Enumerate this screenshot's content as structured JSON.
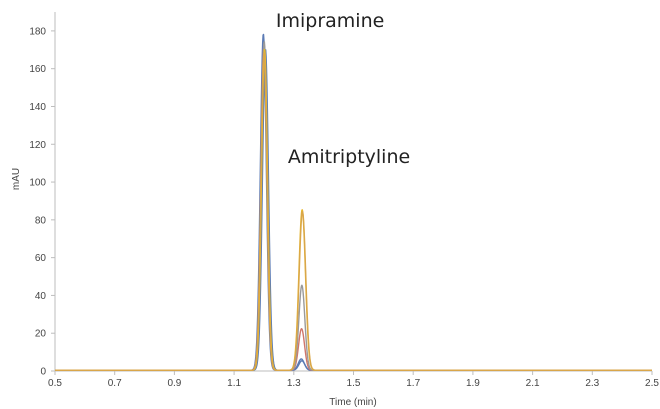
{
  "chart_data": {
    "type": "line",
    "xlabel": "Time (min)",
    "ylabel": "mAU",
    "xlim": [
      0.5,
      2.5
    ],
    "ylim": [
      0,
      190
    ],
    "x_ticks": [
      "0.5",
      "0.7",
      "0.9",
      "1.1",
      "1.3",
      "1.5",
      "1.7",
      "1.9",
      "2.1",
      "2.3",
      "2.5"
    ],
    "y_ticks": [
      "0",
      "20",
      "40",
      "60",
      "80",
      "100",
      "120",
      "140",
      "160",
      "180"
    ],
    "grid": false,
    "annotations": [
      {
        "text": "Imipramine",
        "x": 1.24,
        "y": 182
      },
      {
        "text": "Amitriptyline",
        "x": 1.28,
        "y": 110
      }
    ],
    "series": [
      {
        "color": "#5b7bb5",
        "peak1": {
          "rt": 1.198,
          "height": 178,
          "width": 0.01
        },
        "peak2": {
          "rt": 1.325,
          "height": 6,
          "width": 0.01
        }
      },
      {
        "color": "#5b7bb5",
        "peak1": {
          "rt": 1.205,
          "height": 170,
          "width": 0.01
        },
        "peak2": {
          "rt": 1.327,
          "height": 5,
          "width": 0.01
        }
      },
      {
        "color": "#d0766a",
        "peak1": {
          "rt": 1.2,
          "height": 172,
          "width": 0.01
        },
        "peak2": {
          "rt": 1.326,
          "height": 22,
          "width": 0.01
        }
      },
      {
        "color": "#9a9a9a",
        "peak1": {
          "rt": 1.201,
          "height": 174,
          "width": 0.01
        },
        "peak2": {
          "rt": 1.327,
          "height": 45,
          "width": 0.01
        }
      },
      {
        "color": "#e8b82a",
        "peak1": {
          "rt": 1.202,
          "height": 170,
          "width": 0.01
        },
        "peak2": {
          "rt": 1.328,
          "height": 85,
          "width": 0.011
        }
      },
      {
        "color": "#d9a64a",
        "peak1": {
          "rt": 1.2,
          "height": 168,
          "width": 0.01
        },
        "peak2": {
          "rt": 1.329,
          "height": 84,
          "width": 0.011
        }
      }
    ]
  }
}
